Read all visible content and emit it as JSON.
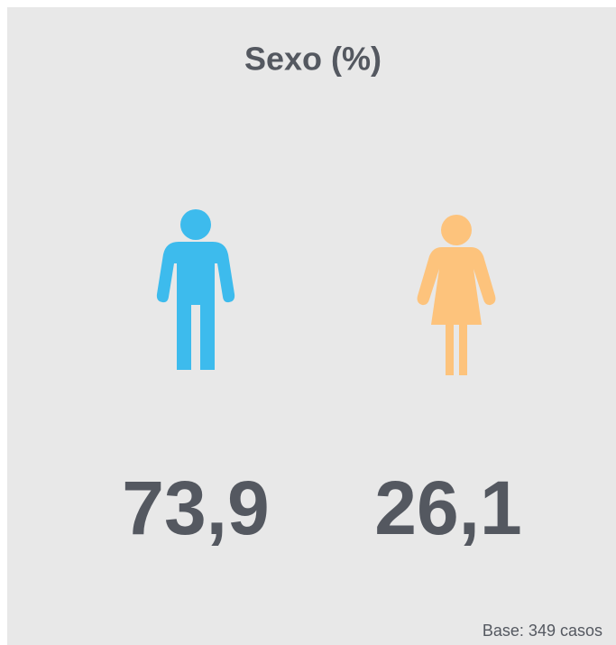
{
  "title": "Sexo (%)",
  "items": [
    {
      "value": "73,9",
      "color": "#3dbbed"
    },
    {
      "value": "26,1",
      "color": "#fdc37c"
    }
  ],
  "footnote": "Base: 349 casos"
}
